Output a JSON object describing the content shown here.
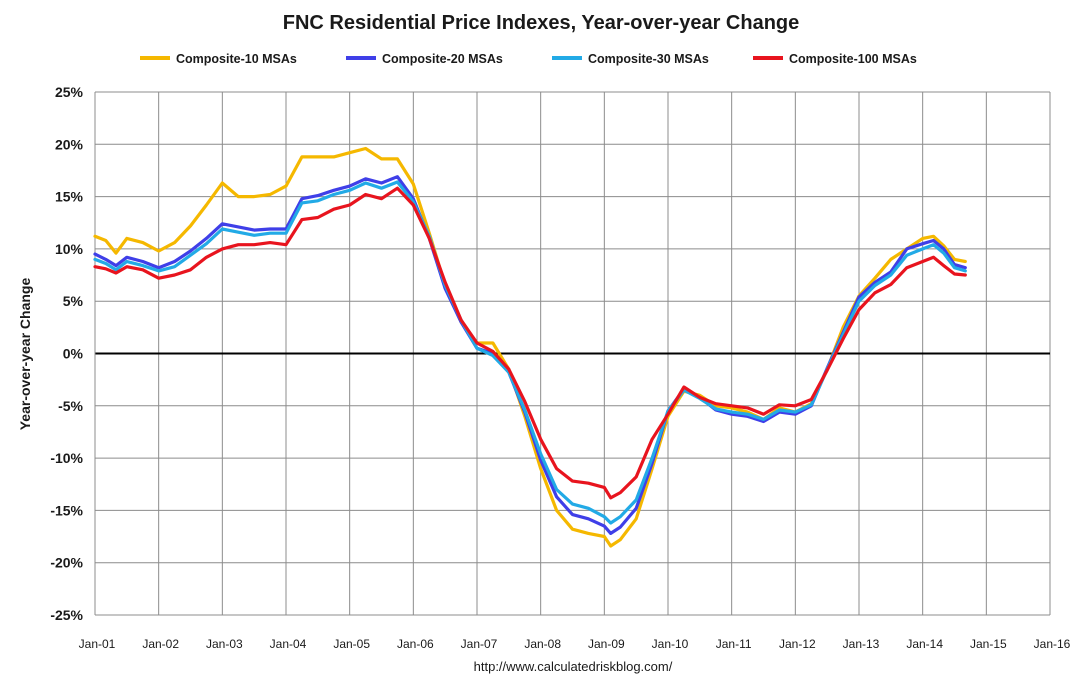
{
  "chart_data": {
    "type": "line",
    "title": "FNC Residential Price Indexes, Year-over-year Change",
    "xlabel": "",
    "ylabel": "Year-over-year Change",
    "source": "http://www.calculatedriskblog.com/",
    "ylim": [
      -25,
      25
    ],
    "y_ticks": [
      25,
      20,
      15,
      10,
      5,
      0,
      -5,
      -10,
      -15,
      -20,
      -25
    ],
    "y_tick_labels": [
      "25%",
      "20%",
      "15%",
      "10%",
      "5%",
      "0%",
      "-5%",
      "-10%",
      "-15%",
      "-20%",
      "-25%"
    ],
    "xlim": [
      2001,
      2016
    ],
    "x_ticks": [
      2001,
      2002,
      2003,
      2004,
      2005,
      2006,
      2007,
      2008,
      2009,
      2010,
      2011,
      2012,
      2013,
      2014,
      2015,
      2016
    ],
    "x_tick_labels": [
      "Jan-01",
      "Jan-02",
      "Jan-03",
      "Jan-04",
      "Jan-05",
      "Jan-06",
      "Jan-07",
      "Jan-08",
      "Jan-09",
      "Jan-10",
      "Jan-11",
      "Jan-12",
      "Jan-13",
      "Jan-14",
      "Jan-15",
      "Jan-16"
    ],
    "grid": true,
    "legend_position": "top",
    "series": [
      {
        "name": "Composite-10 MSAs",
        "color": "#F5B800",
        "x": [
          2001.0,
          2001.17,
          2001.33,
          2001.5,
          2001.75,
          2002.0,
          2002.25,
          2002.5,
          2002.75,
          2003.0,
          2003.25,
          2003.5,
          2003.75,
          2004.0,
          2004.25,
          2004.5,
          2004.75,
          2005.0,
          2005.25,
          2005.5,
          2005.75,
          2006.0,
          2006.25,
          2006.5,
          2006.75,
          2007.0,
          2007.25,
          2007.5,
          2007.75,
          2008.0,
          2008.25,
          2008.5,
          2008.75,
          2009.0,
          2009.1,
          2009.25,
          2009.5,
          2009.75,
          2010.0,
          2010.25,
          2010.5,
          2010.75,
          2011.0,
          2011.25,
          2011.5,
          2011.75,
          2012.0,
          2012.25,
          2012.5,
          2012.75,
          2013.0,
          2013.25,
          2013.5,
          2013.75,
          2014.0,
          2014.17,
          2014.33,
          2014.5,
          2014.67
        ],
        "values": [
          11.2,
          10.8,
          9.6,
          11.0,
          10.6,
          9.8,
          10.6,
          12.2,
          14.2,
          16.3,
          15.0,
          15.0,
          15.2,
          16.0,
          18.8,
          18.8,
          18.8,
          19.2,
          19.6,
          18.6,
          18.6,
          16.2,
          11.5,
          6.5,
          3.0,
          1.0,
          1.0,
          -1.5,
          -6.0,
          -11.0,
          -15.0,
          -16.8,
          -17.2,
          -17.5,
          -18.4,
          -17.8,
          -15.8,
          -11.0,
          -6.0,
          -3.6,
          -4.0,
          -5.0,
          -5.2,
          -5.6,
          -6.3,
          -5.2,
          -5.6,
          -4.8,
          -1.5,
          2.5,
          5.5,
          7.2,
          9.0,
          10.0,
          11.0,
          11.2,
          10.3,
          9.0,
          8.8
        ]
      },
      {
        "name": "Composite-20 MSAs",
        "color": "#3F3FE8",
        "x": [
          2001.0,
          2001.17,
          2001.33,
          2001.5,
          2001.75,
          2002.0,
          2002.25,
          2002.5,
          2002.75,
          2003.0,
          2003.25,
          2003.5,
          2003.75,
          2004.0,
          2004.25,
          2004.5,
          2004.75,
          2005.0,
          2005.25,
          2005.5,
          2005.75,
          2006.0,
          2006.25,
          2006.5,
          2006.75,
          2007.0,
          2007.25,
          2007.5,
          2007.75,
          2008.0,
          2008.25,
          2008.5,
          2008.75,
          2009.0,
          2009.1,
          2009.25,
          2009.5,
          2009.75,
          2010.0,
          2010.25,
          2010.5,
          2010.75,
          2011.0,
          2011.25,
          2011.5,
          2011.75,
          2012.0,
          2012.25,
          2012.5,
          2012.75,
          2013.0,
          2013.25,
          2013.5,
          2013.75,
          2014.0,
          2014.17,
          2014.33,
          2014.5,
          2014.67
        ],
        "values": [
          9.5,
          9.0,
          8.4,
          9.2,
          8.8,
          8.2,
          8.8,
          9.8,
          11.0,
          12.4,
          12.1,
          11.8,
          11.9,
          11.9,
          14.8,
          15.1,
          15.6,
          16.0,
          16.7,
          16.3,
          16.9,
          14.8,
          11.0,
          6.2,
          3.0,
          0.5,
          0.0,
          -1.8,
          -5.6,
          -10.2,
          -13.7,
          -15.4,
          -15.8,
          -16.5,
          -17.2,
          -16.6,
          -14.8,
          -10.5,
          -5.5,
          -3.4,
          -4.2,
          -5.4,
          -5.8,
          -6.0,
          -6.5,
          -5.6,
          -5.8,
          -5.0,
          -1.4,
          2.0,
          5.4,
          6.8,
          7.8,
          10.0,
          10.5,
          10.8,
          10.0,
          8.5,
          8.2
        ]
      },
      {
        "name": "Composite-30 MSAs",
        "color": "#22AAE6",
        "x": [
          2001.0,
          2001.17,
          2001.33,
          2001.5,
          2001.75,
          2002.0,
          2002.25,
          2002.5,
          2002.75,
          2003.0,
          2003.25,
          2003.5,
          2003.75,
          2004.0,
          2004.25,
          2004.5,
          2004.75,
          2005.0,
          2005.25,
          2005.5,
          2005.75,
          2006.0,
          2006.25,
          2006.5,
          2006.75,
          2007.0,
          2007.25,
          2007.5,
          2007.75,
          2008.0,
          2008.25,
          2008.5,
          2008.75,
          2009.0,
          2009.1,
          2009.25,
          2009.5,
          2009.75,
          2010.0,
          2010.25,
          2010.5,
          2010.75,
          2011.0,
          2011.25,
          2011.5,
          2011.75,
          2012.0,
          2012.25,
          2012.5,
          2012.75,
          2013.0,
          2013.25,
          2013.5,
          2013.75,
          2014.0,
          2014.17,
          2014.33,
          2014.5,
          2014.67
        ],
        "values": [
          9.0,
          8.6,
          8.0,
          8.8,
          8.4,
          7.9,
          8.3,
          9.4,
          10.5,
          11.9,
          11.6,
          11.3,
          11.5,
          11.5,
          14.4,
          14.6,
          15.2,
          15.6,
          16.3,
          15.8,
          16.4,
          14.5,
          11.2,
          6.5,
          3.2,
          0.5,
          -0.2,
          -1.8,
          -5.4,
          -9.6,
          -13.0,
          -14.4,
          -14.8,
          -15.6,
          -16.2,
          -15.6,
          -14.0,
          -10.0,
          -5.5,
          -3.5,
          -4.3,
          -5.3,
          -5.6,
          -5.8,
          -6.3,
          -5.4,
          -5.6,
          -4.9,
          -1.5,
          1.8,
          5.0,
          6.5,
          7.5,
          9.4,
          10.0,
          10.4,
          9.6,
          8.2,
          7.9
        ]
      },
      {
        "name": "Composite-100 MSAs",
        "color": "#E8141E",
        "x": [
          2001.0,
          2001.17,
          2001.33,
          2001.5,
          2001.75,
          2002.0,
          2002.25,
          2002.5,
          2002.75,
          2003.0,
          2003.25,
          2003.5,
          2003.75,
          2004.0,
          2004.25,
          2004.5,
          2004.75,
          2005.0,
          2005.25,
          2005.5,
          2005.75,
          2006.0,
          2006.25,
          2006.5,
          2006.75,
          2007.0,
          2007.25,
          2007.5,
          2007.75,
          2008.0,
          2008.25,
          2008.5,
          2008.75,
          2009.0,
          2009.1,
          2009.25,
          2009.5,
          2009.75,
          2010.0,
          2010.25,
          2010.5,
          2010.75,
          2011.0,
          2011.25,
          2011.5,
          2011.75,
          2012.0,
          2012.25,
          2012.5,
          2012.75,
          2013.0,
          2013.25,
          2013.5,
          2013.75,
          2014.0,
          2014.17,
          2014.33,
          2014.5,
          2014.67
        ],
        "values": [
          8.3,
          8.1,
          7.7,
          8.3,
          8.0,
          7.2,
          7.5,
          8.0,
          9.2,
          10.0,
          10.4,
          10.4,
          10.6,
          10.4,
          12.8,
          13.0,
          13.8,
          14.2,
          15.2,
          14.8,
          15.8,
          14.2,
          11.0,
          6.8,
          3.2,
          1.0,
          0.2,
          -1.5,
          -4.6,
          -8.2,
          -11.0,
          -12.2,
          -12.4,
          -12.8,
          -13.8,
          -13.3,
          -11.8,
          -8.2,
          -5.8,
          -3.2,
          -4.2,
          -4.8,
          -5.0,
          -5.2,
          -5.8,
          -4.9,
          -5.0,
          -4.4,
          -1.6,
          1.4,
          4.2,
          5.8,
          6.6,
          8.2,
          8.8,
          9.2,
          8.4,
          7.6,
          7.5
        ]
      }
    ]
  }
}
